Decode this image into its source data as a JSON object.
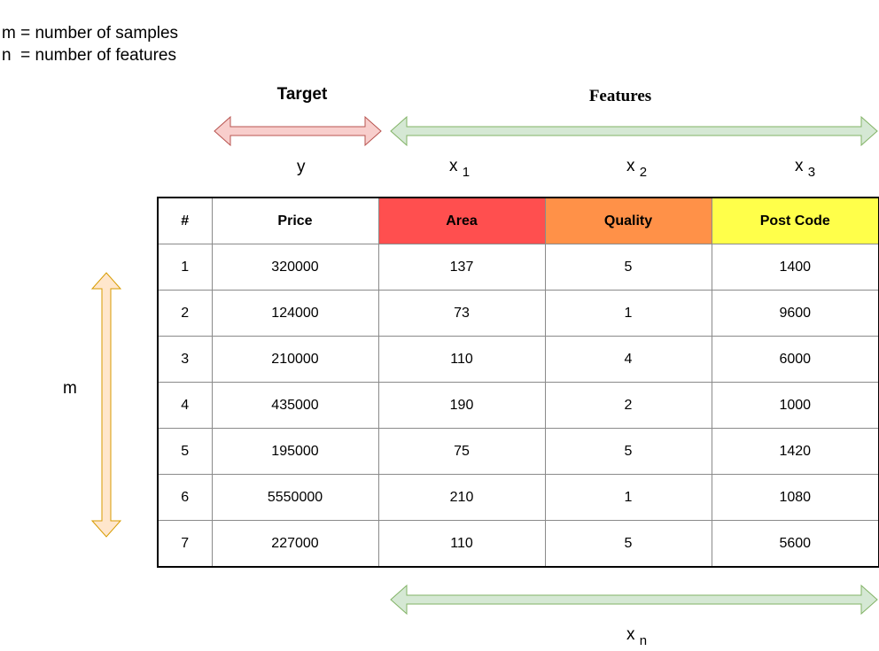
{
  "legend": {
    "line1": "m = number of samples",
    "line2": "n  = number of features"
  },
  "headings": {
    "target": "Target",
    "features": "Features"
  },
  "axis_labels": {
    "y": "y",
    "x1_base": "x",
    "x1_sub": "1",
    "x2_base": "x",
    "x2_sub": "2",
    "x3_base": "x",
    "x3_sub": "3",
    "xn_base": "x",
    "xn_sub": "n",
    "m": "m"
  },
  "colors": {
    "target_arrow_fill": "#f8cecc",
    "target_arrow_stroke": "#b85450",
    "feature_arrow_fill": "#d5e8d4",
    "feature_arrow_stroke": "#82b366",
    "m_arrow_fill": "#ffe6cc",
    "m_arrow_stroke": "#d79b00",
    "area_header": "#ff4f4f",
    "quality_header": "#ff9148",
    "postcode_header": "#ffff4a"
  },
  "table": {
    "headers": [
      "#",
      "Price",
      "Area",
      "Quality",
      "Post Code"
    ],
    "rows": [
      [
        "1",
        "320000",
        "137",
        "5",
        "1400"
      ],
      [
        "2",
        "124000",
        "73",
        "1",
        "9600"
      ],
      [
        "3",
        "210000",
        "110",
        "4",
        "6000"
      ],
      [
        "4",
        "435000",
        "190",
        "2",
        "1000"
      ],
      [
        "5",
        "195000",
        "75",
        "5",
        "1420"
      ],
      [
        "6",
        "5550000",
        "210",
        "1",
        "1080"
      ],
      [
        "7",
        "227000",
        "110",
        "5",
        "5600"
      ]
    ]
  }
}
